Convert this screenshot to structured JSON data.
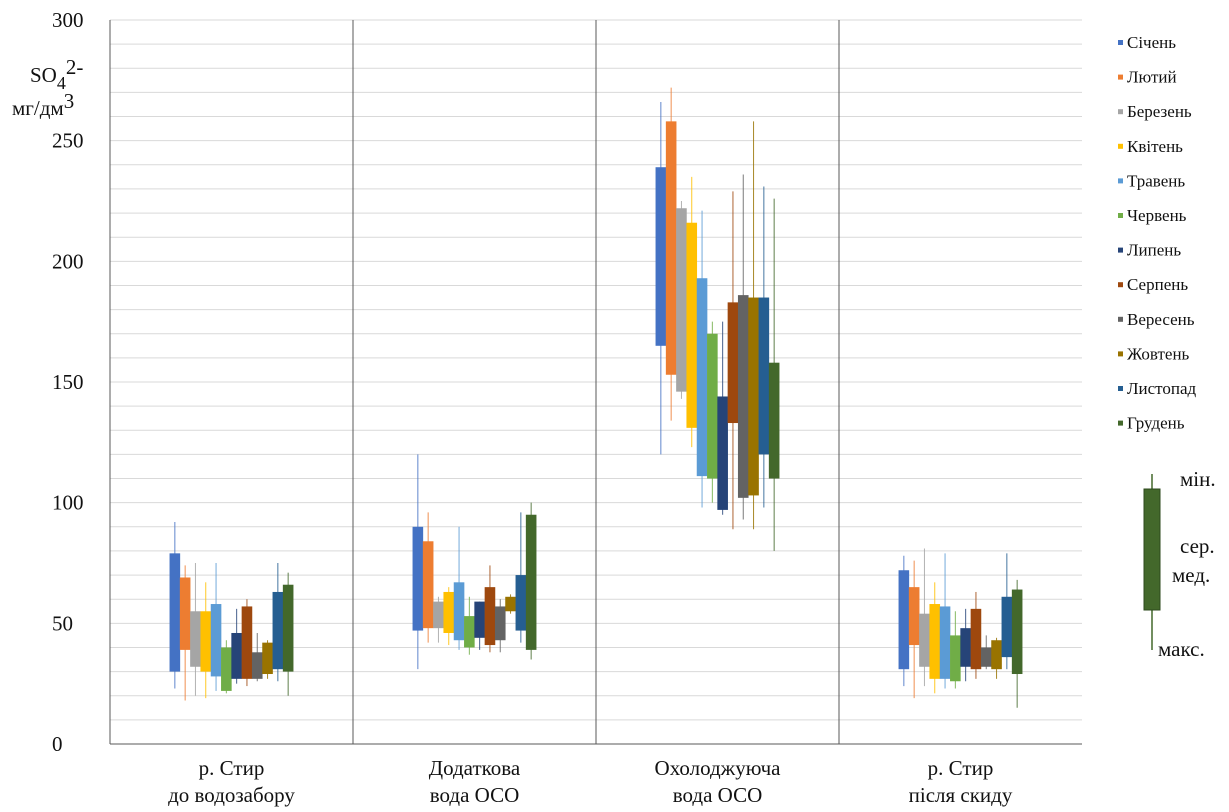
{
  "chart_data": {
    "type": "box",
    "y_unit_label": {
      "species": "SO",
      "subscript": "4",
      "superscript": "2-",
      "unit_main": "мг/дм",
      "unit_sup": "3"
    },
    "ylim": [
      0,
      300
    ],
    "y_ticks": [
      0,
      50,
      100,
      150,
      200,
      250,
      300
    ],
    "grid": true,
    "legend_position": "right",
    "categories": [
      [
        "р. Стир",
        "до водозабору"
      ],
      [
        "Додаткова",
        "вода ОСО"
      ],
      [
        "Охолоджуюча",
        "вода ОСО"
      ],
      [
        "р. Стир",
        "після скиду"
      ]
    ],
    "series": [
      {
        "name": "Січень",
        "color": "#4472c4",
        "data": [
          {
            "min": 23,
            "q1": 30,
            "q3": 79,
            "max": 92
          },
          {
            "min": 31,
            "q1": 47,
            "q3": 90,
            "max": 120
          },
          {
            "min": 120,
            "q1": 165,
            "q3": 239,
            "max": 266
          },
          {
            "min": 24,
            "q1": 31,
            "q3": 72,
            "max": 78
          }
        ]
      },
      {
        "name": "Лютий",
        "color": "#ed7d31",
        "data": [
          {
            "min": 18,
            "q1": 39,
            "q3": 69,
            "max": 74
          },
          {
            "min": 42,
            "q1": 48,
            "q3": 84,
            "max": 96
          },
          {
            "min": 134,
            "q1": 153,
            "q3": 258,
            "max": 272
          },
          {
            "min": 19,
            "q1": 41,
            "q3": 65,
            "max": 76
          }
        ]
      },
      {
        "name": "Березень",
        "color": "#a5a5a5",
        "data": [
          {
            "min": 20,
            "q1": 32,
            "q3": 55,
            "max": 75
          },
          {
            "min": 42,
            "q1": 48,
            "q3": 59,
            "max": 61
          },
          {
            "min": 143,
            "q1": 146,
            "q3": 222,
            "max": 225
          },
          {
            "min": 24,
            "q1": 32,
            "q3": 54,
            "max": 81
          }
        ]
      },
      {
        "name": "Квітень",
        "color": "#ffc000",
        "data": [
          {
            "min": 19,
            "q1": 30,
            "q3": 55,
            "max": 67
          },
          {
            "min": 41,
            "q1": 46,
            "q3": 63,
            "max": 65
          },
          {
            "min": 123,
            "q1": 131,
            "q3": 216,
            "max": 235
          },
          {
            "min": 21,
            "q1": 27,
            "q3": 58,
            "max": 67
          }
        ]
      },
      {
        "name": "Травень",
        "color": "#5b9bd5",
        "data": [
          {
            "min": 22,
            "q1": 28,
            "q3": 58,
            "max": 75
          },
          {
            "min": 39,
            "q1": 43,
            "q3": 67,
            "max": 90
          },
          {
            "min": 98,
            "q1": 111,
            "q3": 193,
            "max": 221
          },
          {
            "min": 23,
            "q1": 27,
            "q3": 57,
            "max": 79
          }
        ]
      },
      {
        "name": "Червень",
        "color": "#70ad47",
        "data": [
          {
            "min": 21,
            "q1": 22,
            "q3": 40,
            "max": 43
          },
          {
            "min": 37,
            "q1": 40,
            "q3": 53,
            "max": 61
          },
          {
            "min": 100,
            "q1": 110,
            "q3": 170,
            "max": 175
          },
          {
            "min": 23,
            "q1": 26,
            "q3": 45,
            "max": 55
          }
        ]
      },
      {
        "name": "Липень",
        "color": "#264478",
        "data": [
          {
            "min": 25,
            "q1": 27,
            "q3": 46,
            "max": 56
          },
          {
            "min": 39,
            "q1": 44,
            "q3": 59,
            "max": 59
          },
          {
            "min": 95,
            "q1": 97,
            "q3": 144,
            "max": 175
          },
          {
            "min": 26,
            "q1": 32,
            "q3": 48,
            "max": 56
          }
        ]
      },
      {
        "name": "Серпень",
        "color": "#9e480e",
        "data": [
          {
            "min": 24,
            "q1": 27,
            "q3": 57,
            "max": 60
          },
          {
            "min": 38,
            "q1": 41,
            "q3": 65,
            "max": 74
          },
          {
            "min": 89,
            "q1": 133,
            "q3": 183,
            "max": 229
          },
          {
            "min": 27,
            "q1": 31,
            "q3": 56,
            "max": 63
          }
        ]
      },
      {
        "name": "Вересень",
        "color": "#636363",
        "data": [
          {
            "min": 26,
            "q1": 27,
            "q3": 38,
            "max": 46
          },
          {
            "min": 38,
            "q1": 43,
            "q3": 57,
            "max": 60
          },
          {
            "min": 93,
            "q1": 102,
            "q3": 186,
            "max": 236
          },
          {
            "min": 31,
            "q1": 32,
            "q3": 40,
            "max": 45
          }
        ]
      },
      {
        "name": "Жовтень",
        "color": "#997300",
        "data": [
          {
            "min": 27,
            "q1": 29,
            "q3": 42,
            "max": 43
          },
          {
            "min": 54,
            "q1": 55,
            "q3": 61,
            "max": 62
          },
          {
            "min": 89,
            "q1": 103,
            "q3": 185,
            "max": 258
          },
          {
            "min": 27,
            "q1": 31,
            "q3": 43,
            "max": 44
          }
        ]
      },
      {
        "name": "Листопад",
        "color": "#255e91",
        "data": [
          {
            "min": 26,
            "q1": 31,
            "q3": 63,
            "max": 75
          },
          {
            "min": 42,
            "q1": 47,
            "q3": 70,
            "max": 96
          },
          {
            "min": 98,
            "q1": 120,
            "q3": 185,
            "max": 231
          },
          {
            "min": 31,
            "q1": 36,
            "q3": 61,
            "max": 79
          }
        ]
      },
      {
        "name": "Грудень",
        "color": "#43682b",
        "data": [
          {
            "min": 20,
            "q1": 30,
            "q3": 66,
            "max": 71
          },
          {
            "min": 35,
            "q1": 39,
            "q3": 95,
            "max": 100
          },
          {
            "min": 80,
            "q1": 110,
            "q3": 158,
            "max": 226
          },
          {
            "min": 15,
            "q1": 29,
            "q3": 64,
            "max": 68
          }
        ]
      }
    ],
    "box_key": {
      "color": "#43682b",
      "labels": {
        "min": "мін.",
        "mean": "сер.",
        "median": "мед.",
        "max": "макс."
      }
    }
  }
}
